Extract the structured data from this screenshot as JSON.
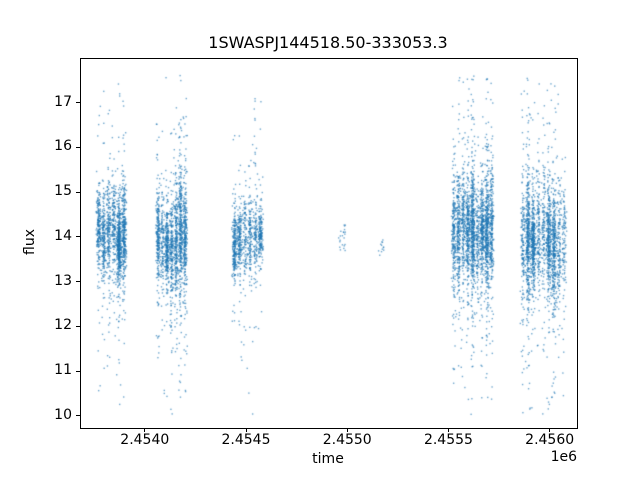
{
  "chart_data": {
    "type": "scatter",
    "title": "1SWASPJ144518.50-333053.3",
    "xlabel": "time",
    "ylabel": "flux",
    "x_offset_label": "1e6",
    "x_unit_scale": 1000000,
    "marker_color": "#1f77b4",
    "marker_alpha": 0.65,
    "background_color": "#ffffff",
    "xlim": [
      2.45368,
      2.45613
    ],
    "ylim": [
      9.75,
      18.0
    ],
    "xticks": [
      {
        "value": 2.454,
        "label": "2.4540"
      },
      {
        "value": 2.4545,
        "label": "2.4545"
      },
      {
        "value": 2.455,
        "label": "2.4550"
      },
      {
        "value": 2.4555,
        "label": "2.4555"
      },
      {
        "value": 2.456,
        "label": "2.4560"
      }
    ],
    "yticks": [
      {
        "value": 10,
        "label": "10"
      },
      {
        "value": 11,
        "label": "11"
      },
      {
        "value": 12,
        "label": "12"
      },
      {
        "value": 13,
        "label": "13"
      },
      {
        "value": 14,
        "label": "14"
      },
      {
        "value": 15,
        "label": "15"
      },
      {
        "value": 16,
        "label": "16"
      },
      {
        "value": 17,
        "label": "17"
      }
    ],
    "flux_range_observed": [
      10.05,
      17.65
    ],
    "clusters": [
      {
        "x_min": 2.453755,
        "x_max": 2.453905,
        "n": 1600,
        "columns": 6,
        "flux_mean": 14.0,
        "flux_std": 0.5,
        "wide_frac": 0.18,
        "wide_std": 1.2,
        "tail_frac": 0.035,
        "tail_lo": 10.2,
        "tail_hi": 17.55
      },
      {
        "x_min": 2.45405,
        "x_max": 2.454205,
        "n": 1800,
        "columns": 7,
        "flux_mean": 13.95,
        "flux_std": 0.5,
        "wide_frac": 0.18,
        "wide_std": 1.15,
        "tail_frac": 0.03,
        "tail_lo": 10.4,
        "tail_hi": 17.6
      },
      {
        "x_min": 2.454425,
        "x_max": 2.45458,
        "n": 1000,
        "columns": 6,
        "flux_mean": 14.05,
        "flux_std": 0.4,
        "wide_frac": 0.15,
        "wide_std": 1.1,
        "tail_frac": 0.03,
        "tail_lo": 10.05,
        "tail_hi": 17.35
      },
      {
        "x_min": 2.45495,
        "x_max": 2.45499,
        "n": 22,
        "columns": 2,
        "flux_mean": 14.0,
        "flux_std": 0.15,
        "wide_frac": 0.0,
        "wide_std": 0.3,
        "tail_frac": 0.0,
        "tail_lo": 13.5,
        "tail_hi": 14.5
      },
      {
        "x_min": 2.45515,
        "x_max": 2.455185,
        "n": 12,
        "columns": 1,
        "flux_mean": 13.85,
        "flux_std": 0.15,
        "wide_frac": 0.0,
        "wide_std": 0.3,
        "tail_frac": 0.0,
        "tail_lo": 13.5,
        "tail_hi": 14.3
      },
      {
        "x_min": 2.45551,
        "x_max": 2.45572,
        "n": 2600,
        "columns": 9,
        "flux_mean": 14.1,
        "flux_std": 0.55,
        "wide_frac": 0.2,
        "wide_std": 1.25,
        "tail_frac": 0.035,
        "tail_lo": 10.3,
        "tail_hi": 17.6
      },
      {
        "x_min": 2.45585,
        "x_max": 2.45608,
        "n": 2200,
        "columns": 9,
        "flux_mean": 13.9,
        "flux_std": 0.55,
        "wide_frac": 0.2,
        "wide_std": 1.2,
        "tail_frac": 0.04,
        "tail_lo": 10.1,
        "tail_hi": 17.5
      }
    ]
  }
}
